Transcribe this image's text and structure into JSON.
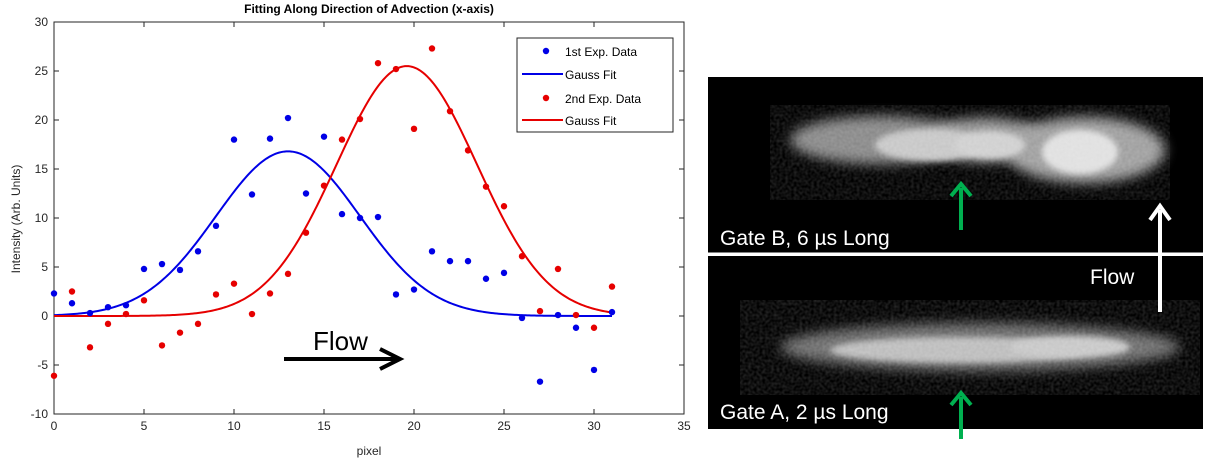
{
  "chart_data": {
    "type": "scatter",
    "title": "Fitting Along Direction of Advection (x-axis)",
    "xlabel": "pixel",
    "ylabel": "Intensity (Arb. Units)",
    "xlim": [
      0,
      35
    ],
    "ylim": [
      -10,
      30
    ],
    "xticks": [
      0,
      5,
      10,
      15,
      20,
      25,
      30,
      35
    ],
    "yticks": [
      -10,
      -5,
      0,
      5,
      10,
      15,
      20,
      25,
      30
    ],
    "grid": false,
    "legend_position": "top-right",
    "annotation": "Flow",
    "series": [
      {
        "name": "1st Exp. Data",
        "kind": "points",
        "color": "#0000e6",
        "x": [
          0,
          1,
          2,
          3,
          4,
          5,
          6,
          7,
          8,
          9,
          10,
          11,
          12,
          13,
          14,
          15,
          16,
          17,
          18,
          19,
          20,
          21,
          22,
          23,
          24,
          25,
          26,
          27,
          28,
          29,
          30,
          31
        ],
        "y": [
          2.3,
          1.3,
          0.3,
          0.9,
          1.1,
          4.8,
          5.3,
          4.7,
          6.6,
          9.2,
          18.0,
          12.4,
          18.1,
          20.2,
          12.5,
          18.3,
          10.4,
          10.0,
          10.1,
          2.2,
          2.7,
          6.6,
          5.6,
          5.6,
          3.8,
          4.4,
          -0.2,
          -6.7,
          0.1,
          -1.2,
          -5.5,
          0.4
        ]
      },
      {
        "name": "Gauss Fit",
        "kind": "gauss",
        "color": "#0000e6",
        "amplitude": 16.8,
        "center": 13.0,
        "sigma": 4.0,
        "x_range": [
          0,
          31
        ]
      },
      {
        "name": "2nd Exp. Data",
        "kind": "points",
        "color": "#e60000",
        "x": [
          0,
          1,
          2,
          3,
          4,
          5,
          6,
          7,
          8,
          9,
          10,
          11,
          12,
          13,
          14,
          15,
          16,
          17,
          18,
          19,
          20,
          21,
          22,
          23,
          24,
          25,
          26,
          27,
          28,
          29,
          30,
          31
        ],
        "y": [
          -6.1,
          2.5,
          -3.2,
          -0.8,
          0.2,
          1.6,
          -3.0,
          -1.7,
          -0.8,
          2.2,
          3.3,
          0.2,
          2.3,
          4.3,
          8.5,
          13.3,
          18.0,
          20.1,
          25.8,
          25.2,
          19.1,
          27.3,
          20.9,
          16.9,
          13.2,
          11.2,
          6.1,
          0.5,
          4.8,
          0.1,
          -1.2,
          3.0
        ]
      },
      {
        "name": "Gauss Fit",
        "kind": "gauss",
        "color": "#e60000",
        "amplitude": 25.5,
        "center": 19.6,
        "sigma": 3.9,
        "x_range": [
          0,
          31
        ]
      }
    ]
  },
  "image_panel": {
    "top_label": "Gate B, 6 µs Long",
    "bottom_label": "Gate A, 2 µs Long",
    "flow_label": "Flow"
  },
  "colors": {
    "arrow_marker": "#00b050",
    "flow_arrow_chart": "#000000",
    "flow_arrow_panel": "#ffffff",
    "panel_background": "#000000"
  }
}
